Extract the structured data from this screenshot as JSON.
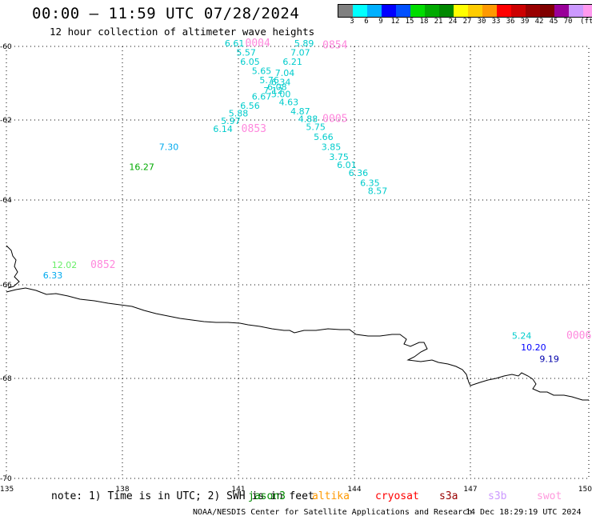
{
  "header": {
    "title": "00:00 – 11:59 UTC 07/28/2024",
    "subtitle": "12 hour collection of altimeter wave heights"
  },
  "legend": {
    "colors": [
      "#808080",
      "#00ffff",
      "#00b0ff",
      "#0000ff",
      "#0050ff",
      "#00dd00",
      "#00aa00",
      "#008800",
      "#ffff00",
      "#ffcc00",
      "#ff9900",
      "#ff0000",
      "#cc0000",
      "#990000",
      "#800000",
      "#990099",
      "#cc99ff",
      "#ff99ee",
      "#000000"
    ],
    "labels": [
      "3",
      "6",
      "9",
      "12",
      "15",
      "18",
      "21",
      "24",
      "27",
      "30",
      "33",
      "36",
      "39",
      "42",
      "45",
      "70",
      "(ft)"
    ]
  },
  "axes": {
    "lon_ticks": [
      "135",
      "138",
      "141",
      "144",
      "147",
      "150"
    ],
    "lat_ticks": [
      "-60",
      "-62",
      "-64",
      "-66",
      "-68",
      "-70"
    ]
  },
  "observations": [
    {
      "text": "6.61",
      "lon": 140.9,
      "lat": -60.0,
      "color": "#00cccc"
    },
    {
      "text": "5.57",
      "lon": 141.2,
      "lat": -60.25,
      "color": "#00cccc"
    },
    {
      "text": "6.05",
      "lon": 141.3,
      "lat": -60.5,
      "color": "#00cccc"
    },
    {
      "text": "5.65",
      "lon": 141.6,
      "lat": -60.75,
      "color": "#00cccc"
    },
    {
      "text": "5.76",
      "lon": 141.8,
      "lat": -61.0,
      "color": "#00cccc"
    },
    {
      "text": "6.34",
      "lon": 142.1,
      "lat": -61.05,
      "color": "#00cccc"
    },
    {
      "text": "6.08",
      "lon": 142.0,
      "lat": -61.18,
      "color": "#00cccc"
    },
    {
      "text": "7.12",
      "lon": 141.9,
      "lat": -61.28,
      "color": "#00cccc"
    },
    {
      "text": "5.00",
      "lon": 142.1,
      "lat": -61.38,
      "color": "#00cccc"
    },
    {
      "text": "6.67",
      "lon": 141.6,
      "lat": -61.45,
      "color": "#00cccc"
    },
    {
      "text": "6.56",
      "lon": 141.3,
      "lat": -61.7,
      "color": "#00cccc"
    },
    {
      "text": "5.88",
      "lon": 141.0,
      "lat": -61.9,
      "color": "#00cccc"
    },
    {
      "text": "5.97",
      "lon": 140.8,
      "lat": -62.1,
      "color": "#00cccc"
    },
    {
      "text": "6.14",
      "lon": 140.6,
      "lat": -62.3,
      "color": "#00cccc"
    },
    {
      "text": "5.89",
      "lon": 142.7,
      "lat": -60.0,
      "color": "#00cccc"
    },
    {
      "text": "7.07",
      "lon": 142.6,
      "lat": -60.25,
      "color": "#00cccc"
    },
    {
      "text": "6.21",
      "lon": 142.4,
      "lat": -60.5,
      "color": "#00cccc"
    },
    {
      "text": "7.04",
      "lon": 142.2,
      "lat": -60.8,
      "color": "#00cccc"
    },
    {
      "text": "4.63",
      "lon": 142.3,
      "lat": -61.6,
      "color": "#00cccc"
    },
    {
      "text": "4.87",
      "lon": 142.6,
      "lat": -61.85,
      "color": "#00cccc"
    },
    {
      "text": "4.88",
      "lon": 142.8,
      "lat": -62.05,
      "color": "#00cccc"
    },
    {
      "text": "5.75",
      "lon": 143.0,
      "lat": -62.25,
      "color": "#00cccc"
    },
    {
      "text": "5.66",
      "lon": 143.2,
      "lat": -62.5,
      "color": "#00cccc"
    },
    {
      "text": "3.85",
      "lon": 143.4,
      "lat": -62.75,
      "color": "#00cccc"
    },
    {
      "text": "3.75",
      "lon": 143.6,
      "lat": -63.0,
      "color": "#00cccc"
    },
    {
      "text": "6.01",
      "lon": 143.8,
      "lat": -63.2,
      "color": "#00cccc"
    },
    {
      "text": "6.36",
      "lon": 144.1,
      "lat": -63.4,
      "color": "#00cccc"
    },
    {
      "text": "6.35",
      "lon": 144.4,
      "lat": -63.65,
      "color": "#00cccc"
    },
    {
      "text": "8.57",
      "lon": 144.6,
      "lat": -63.85,
      "color": "#00cccc"
    },
    {
      "text": "7.30",
      "lon": 139.2,
      "lat": -62.75,
      "color": "#00aaee"
    },
    {
      "text": "16.27",
      "lon": 138.5,
      "lat": -63.25,
      "color": "#00aa00"
    },
    {
      "text": "12.02",
      "lon": 136.5,
      "lat": -65.6,
      "color": "#66ee66"
    },
    {
      "text": "6.33",
      "lon": 136.2,
      "lat": -65.85,
      "color": "#00aaee"
    },
    {
      "text": "5.24",
      "lon": 148.3,
      "lat": -67.15,
      "color": "#00cccc"
    },
    {
      "text": "10.20",
      "lon": 148.6,
      "lat": -67.4,
      "color": "#0000ff"
    },
    {
      "text": "9.19",
      "lon": 149.0,
      "lat": -67.65,
      "color": "#0000aa"
    }
  ],
  "time_labels": [
    {
      "text": "0004",
      "lon": 141.5,
      "lat": -60.0
    },
    {
      "text": "0854",
      "lon": 143.5,
      "lat": -60.05
    },
    {
      "text": "0853",
      "lon": 141.4,
      "lat": -62.3
    },
    {
      "text": "0005",
      "lon": 143.5,
      "lat": -62.05
    },
    {
      "text": "0852",
      "lon": 137.5,
      "lat": -65.6
    },
    {
      "text": "0006",
      "lon": 149.6,
      "lat": -67.15
    }
  ],
  "footer": {
    "note": "note: 1) Time is in UTC; 2) SWH is in feet",
    "satellites": [
      {
        "name": "jason3",
        "color": "#008800"
      },
      {
        "name": "altika",
        "color": "#ff9900"
      },
      {
        "name": "cryosat",
        "color": "#ff0000"
      },
      {
        "name": "s3a",
        "color": "#990000"
      },
      {
        "name": "s3b",
        "color": "#cc99ff"
      },
      {
        "name": "swot",
        "color": "#ff99dd"
      }
    ],
    "credit": "NOAA/NESDIS Center for Satellite Applications and Research",
    "timestamp": "14 Dec 18:29:19 UTC 2024"
  },
  "map_style": {
    "label_color_time": "#ff88dd",
    "coast_color": "#000000",
    "grid_color": "#000000"
  }
}
